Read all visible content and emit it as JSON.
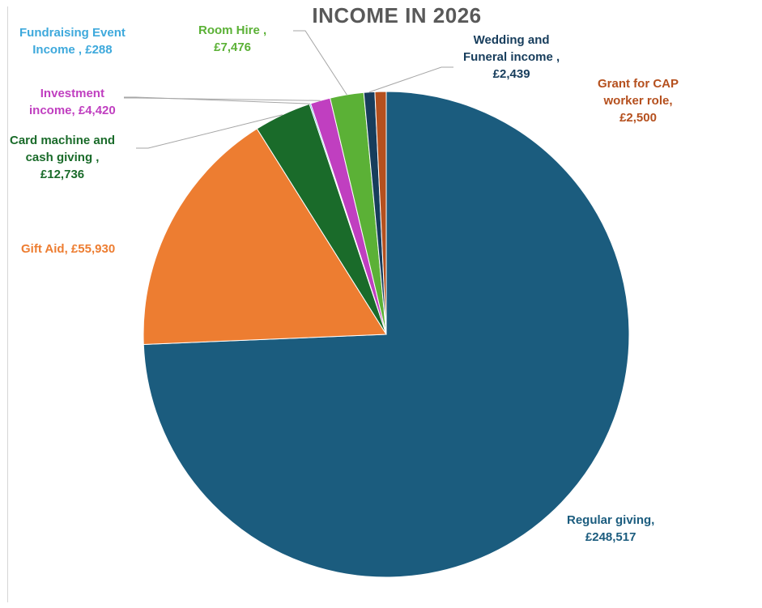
{
  "chart_data": {
    "type": "pie",
    "title": "INCOME IN 2026",
    "slices": [
      {
        "name": "Regular giving",
        "value": 248517,
        "value_label": "£248,517",
        "color": "#1b5c7e"
      },
      {
        "name": "Gift Aid",
        "value": 55930,
        "value_label": "£55,930",
        "color": "#ed7d31"
      },
      {
        "name": "Card machine and cash giving",
        "value": 12736,
        "value_label": "£12,736",
        "color": "#1a6b2a"
      },
      {
        "name": "Fundraising Event Income",
        "value": 288,
        "value_label": "£288",
        "color": "#3ea9dc"
      },
      {
        "name": "Investment income",
        "value": 4420,
        "value_label": "£4,420",
        "color": "#c03fc0"
      },
      {
        "name": "Room Hire",
        "value": 7476,
        "value_label": "£7,476",
        "color": "#5bb136"
      },
      {
        "name": "Wedding and Funeral income",
        "value": 2439,
        "value_label": "£2,439",
        "color": "#173d5c"
      },
      {
        "name": "Grant for CAP worker role",
        "value": 2500,
        "value_label": "£2,500",
        "color": "#b5501e"
      }
    ],
    "labels": {
      "regular": [
        "Regular giving,",
        "£248,517"
      ],
      "gift": [
        "Gift Aid, £55,930"
      ],
      "card": [
        "Card machine and",
        "cash giving ,",
        "£12,736"
      ],
      "fundraising": [
        "Fundraising Event",
        "Income , £288"
      ],
      "investment": [
        "Investment",
        "income, £4,420"
      ],
      "room": [
        "Room Hire ,",
        "£7,476"
      ],
      "wedding": [
        "Wedding and",
        "Funeral income ,",
        "£2,439"
      ],
      "grant": [
        "Grant for CAP",
        "worker role,",
        "£2,500"
      ]
    }
  }
}
